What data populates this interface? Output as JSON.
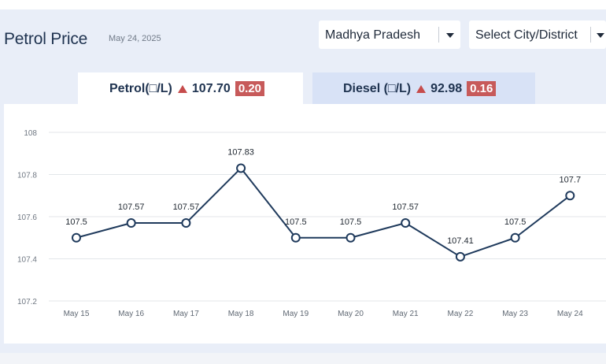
{
  "header": {
    "title": "Petrol Price",
    "date": "May 24, 2025"
  },
  "filters": {
    "state": "Madhya Pradesh",
    "city": "Select City/District"
  },
  "tabs": {
    "petrol": {
      "label": "Petrol(□/L)",
      "price": "107.70",
      "change": "0.20",
      "direction": "up",
      "active": true
    },
    "diesel": {
      "label": "Diesel (□/L)",
      "price": "92.98",
      "change": "0.16",
      "direction": "up",
      "active": false
    }
  },
  "colors": {
    "line": "#1f3a5c",
    "up_arrow": "#c64c4c",
    "badge": "#c75a5a",
    "active_tab": "#ffffff",
    "inactive_tab": "#d8e2f6"
  },
  "chart_data": {
    "type": "line",
    "categories": [
      "May 15",
      "May 16",
      "May 17",
      "May 18",
      "May 19",
      "May 20",
      "May 21",
      "May 22",
      "May 23",
      "May 24"
    ],
    "values": [
      107.5,
      107.57,
      107.57,
      107.83,
      107.5,
      107.5,
      107.57,
      107.41,
      107.5,
      107.7
    ],
    "data_labels": [
      "107.5",
      "107.57",
      "107.57",
      "107.83",
      "107.5",
      "107.5",
      "107.57",
      "107.41",
      "107.5",
      "107.7"
    ],
    "yticks": [
      "108",
      "107.8",
      "107.6",
      "107.4",
      "107.2"
    ],
    "ylim": [
      107.2,
      108
    ],
    "grid": true,
    "xlabel": "",
    "ylabel": ""
  }
}
